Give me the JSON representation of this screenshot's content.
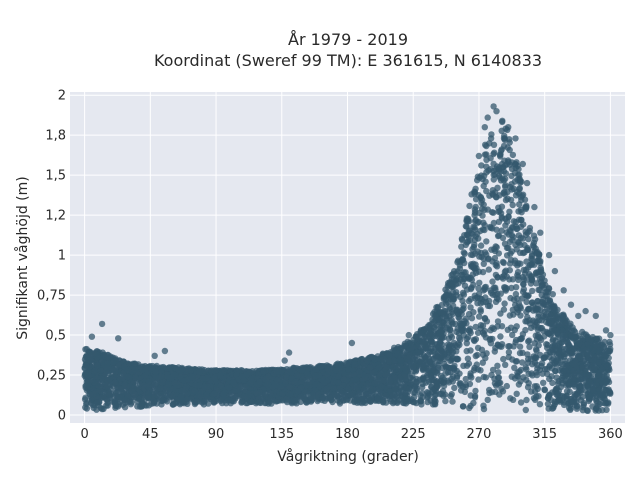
{
  "chart_data": {
    "type": "scatter",
    "title": "År 1979 - 2019",
    "subtitle": "Koordinat (Sweref 99 TM): E 361615, N 6140833",
    "xlabel": "Vågriktning (grader)",
    "ylabel": "Signifikant våghöjd (m)",
    "xlim": [
      -10,
      370
    ],
    "ylim": [
      -0.05,
      2.02
    ],
    "x_ticks": [
      0,
      45,
      90,
      135,
      180,
      225,
      270,
      315,
      360
    ],
    "x_tick_labels": [
      "0",
      "45",
      "90",
      "135",
      "180",
      "225",
      "270",
      "315",
      "360"
    ],
    "y_ticks": [
      0,
      0.25,
      0.5,
      0.75,
      1,
      1.25,
      1.5,
      1.75,
      2
    ],
    "y_tick_labels": [
      "0",
      "0,25",
      "0,5",
      "0,75",
      "1",
      "1,2",
      "1,5",
      "1,8",
      "2"
    ],
    "grid": true,
    "marker_color": "#34586e",
    "envelope": {
      "x": [
        0,
        10,
        20,
        30,
        45,
        60,
        75,
        90,
        105,
        120,
        135,
        150,
        165,
        180,
        195,
        210,
        225,
        235,
        245,
        255,
        262,
        270,
        275,
        280,
        285,
        290,
        297,
        305,
        315,
        325,
        335,
        345,
        355,
        360
      ],
      "upper": [
        0.42,
        0.4,
        0.36,
        0.33,
        0.31,
        0.3,
        0.29,
        0.28,
        0.28,
        0.28,
        0.29,
        0.3,
        0.31,
        0.33,
        0.36,
        0.4,
        0.48,
        0.58,
        0.74,
        0.98,
        1.25,
        1.55,
        1.72,
        1.82,
        1.85,
        1.78,
        1.55,
        1.22,
        0.88,
        0.66,
        0.55,
        0.5,
        0.47,
        0.46
      ],
      "lower": [
        0.02,
        0.03,
        0.04,
        0.05,
        0.05,
        0.06,
        0.06,
        0.07,
        0.07,
        0.07,
        0.07,
        0.07,
        0.07,
        0.07,
        0.07,
        0.07,
        0.07,
        0.06,
        0.05,
        0.04,
        0.04,
        0.03,
        0.03,
        0.03,
        0.03,
        0.03,
        0.03,
        0.03,
        0.02,
        0.02,
        0.02,
        0.02,
        0.02,
        0.03
      ]
    },
    "points": [
      {
        "x": 12,
        "y": 0.57
      },
      {
        "x": 23,
        "y": 0.48
      },
      {
        "x": 5,
        "y": 0.49
      },
      {
        "x": 48,
        "y": 0.37
      },
      {
        "x": 55,
        "y": 0.4
      },
      {
        "x": 140,
        "y": 0.39
      },
      {
        "x": 137,
        "y": 0.34
      },
      {
        "x": 183,
        "y": 0.45
      },
      {
        "x": 222,
        "y": 0.5
      },
      {
        "x": 212,
        "y": 0.42
      },
      {
        "x": 240,
        "y": 0.62
      },
      {
        "x": 252,
        "y": 0.82
      },
      {
        "x": 265,
        "y": 1.38
      },
      {
        "x": 270,
        "y": 1.62
      },
      {
        "x": 274,
        "y": 1.8
      },
      {
        "x": 276,
        "y": 1.86
      },
      {
        "x": 280,
        "y": 1.93
      },
      {
        "x": 282,
        "y": 1.9
      },
      {
        "x": 286,
        "y": 1.84
      },
      {
        "x": 290,
        "y": 1.8
      },
      {
        "x": 295,
        "y": 1.73
      },
      {
        "x": 300,
        "y": 1.57
      },
      {
        "x": 303,
        "y": 1.45
      },
      {
        "x": 308,
        "y": 1.3
      },
      {
        "x": 312,
        "y": 1.14
      },
      {
        "x": 318,
        "y": 1.0
      },
      {
        "x": 322,
        "y": 0.9
      },
      {
        "x": 328,
        "y": 0.78
      },
      {
        "x": 333,
        "y": 0.69
      },
      {
        "x": 338,
        "y": 0.62
      },
      {
        "x": 343,
        "y": 0.65
      },
      {
        "x": 350,
        "y": 0.62
      },
      {
        "x": 357,
        "y": 0.53
      },
      {
        "x": 360,
        "y": 0.5
      }
    ]
  }
}
